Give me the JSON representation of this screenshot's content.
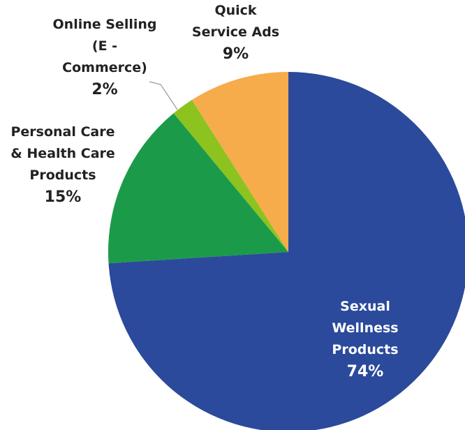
{
  "chart_data": {
    "type": "pie",
    "categories": [
      "Sexual Wellness Products",
      "Personal Care & Health Care Products",
      "Online Selling (E - Commerce)",
      "Quick Service Ads"
    ],
    "values": [
      74,
      15,
      2,
      9
    ],
    "value_labels": [
      "74%",
      "15%",
      "2%",
      "9%"
    ],
    "colors": [
      "#2b4a9b",
      "#1b9b4a",
      "#8cc31f",
      "#f6ac4b"
    ]
  }
}
